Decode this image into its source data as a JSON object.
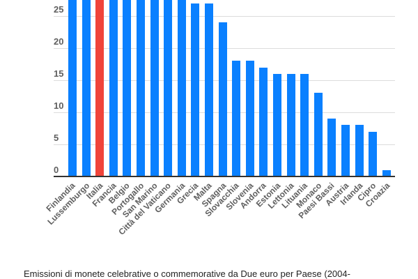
{
  "chart_data": {
    "type": "bar",
    "title": "",
    "xlabel": "",
    "ylabel": "",
    "ylim": [
      0,
      27.5
    ],
    "yticks": [
      0,
      5,
      10,
      15,
      20,
      25
    ],
    "grid": true,
    "legend": null,
    "note": "Top of chart is cropped; first nine bars exceed the visible range (>27)",
    "categories": [
      "Finlandia",
      "Lussemburgo",
      "Italia",
      "Francia",
      "Belgio",
      "Portogallo",
      "San Marino",
      "Città del Vaticano",
      "Germania",
      "Grecia",
      "Malta",
      "Spagna",
      "Slovacchia",
      "Slovenia",
      "Andorra",
      "Estonia",
      "Lettonia",
      "Lituania",
      "Monaco",
      "Paesi Bassi",
      "Austria",
      "Irlanda",
      "Cipro",
      "Croazia"
    ],
    "values": [
      30,
      30,
      30,
      30,
      30,
      30,
      30,
      30,
      30,
      27,
      27,
      24,
      18,
      18,
      17,
      16,
      16,
      16,
      13,
      9,
      8,
      8,
      7,
      1
    ],
    "clipped": [
      true,
      true,
      true,
      true,
      true,
      true,
      true,
      true,
      true,
      false,
      false,
      false,
      false,
      false,
      false,
      false,
      false,
      false,
      false,
      false,
      false,
      false,
      false,
      false
    ],
    "highlight_index": 2,
    "colors": {
      "bar": "#0a80ff",
      "highlight": "#f0443a",
      "grid": "#dcdcdc",
      "axis": "#333333",
      "label": "#5f5f5f"
    }
  },
  "caption": "Emissioni di monete celebrative o commemorative da Due euro per Paese (2004-"
}
